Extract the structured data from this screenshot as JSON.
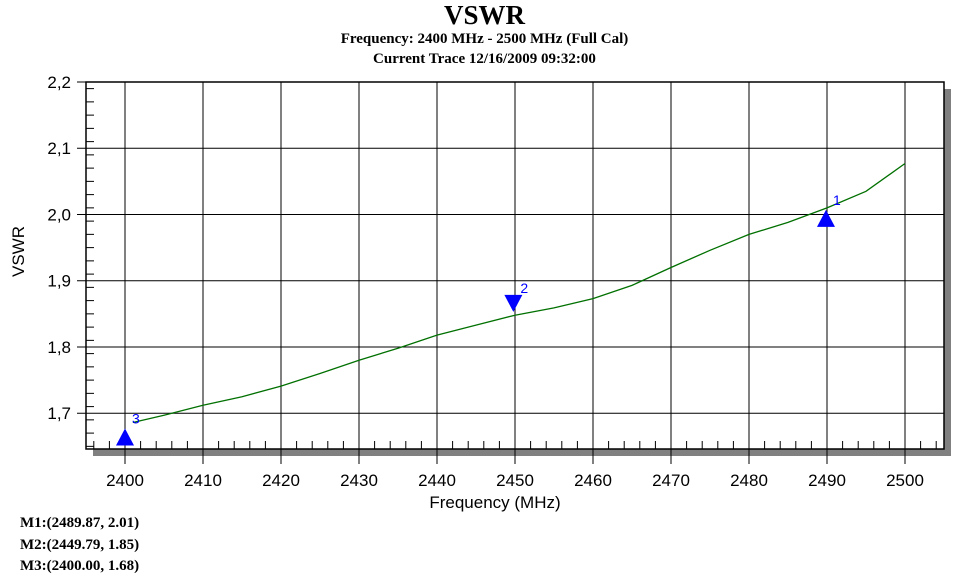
{
  "chart_data": {
    "type": "line",
    "title": "VSWR",
    "subtitle": [
      "Frequency: 2400 MHz - 2500 MHz (Full Cal)",
      "Current Trace 12/16/2009 09:32:00"
    ],
    "xlabel": "Frequency (MHz)",
    "ylabel": "VSWR",
    "xlim": [
      2395,
      2505
    ],
    "ylim": [
      1.646,
      2.2
    ],
    "xticks": [
      "2400",
      "2410",
      "2420",
      "2430",
      "2440",
      "2450",
      "2460",
      "2470",
      "2480",
      "2490",
      "2500"
    ],
    "yticks": [
      "1,7",
      "1,8",
      "1,9",
      "2,0",
      "2,1",
      "2,2"
    ],
    "grid": true,
    "series": [
      {
        "name": "Current Trace",
        "color": "#007000",
        "x": [
          2401,
          2405,
          2410,
          2415,
          2420,
          2425,
          2430,
          2435,
          2440,
          2445,
          2450,
          2455,
          2460,
          2465,
          2470,
          2475,
          2480,
          2485,
          2490,
          2495,
          2500
        ],
        "y": [
          1.686,
          1.697,
          1.712,
          1.725,
          1.741,
          1.76,
          1.78,
          1.798,
          1.818,
          1.833,
          1.848,
          1.859,
          1.873,
          1.893,
          1.92,
          1.946,
          1.97,
          1.988,
          2.01,
          2.035,
          2.077
        ]
      }
    ],
    "markers": [
      {
        "label": "1",
        "x": 2489.87,
        "y": 2.01,
        "dir": "up",
        "text": "M1:(2489.87,  2.01)"
      },
      {
        "label": "2",
        "x": 2449.79,
        "y": 1.85,
        "dir": "down",
        "text": "M2:(2449.79,  1.85)"
      },
      {
        "label": "3",
        "x": 2400.0,
        "y": 1.68,
        "dir": "up",
        "text": "M3:(2400.00,  1.68)"
      }
    ],
    "marker_color": "#0000ff"
  }
}
